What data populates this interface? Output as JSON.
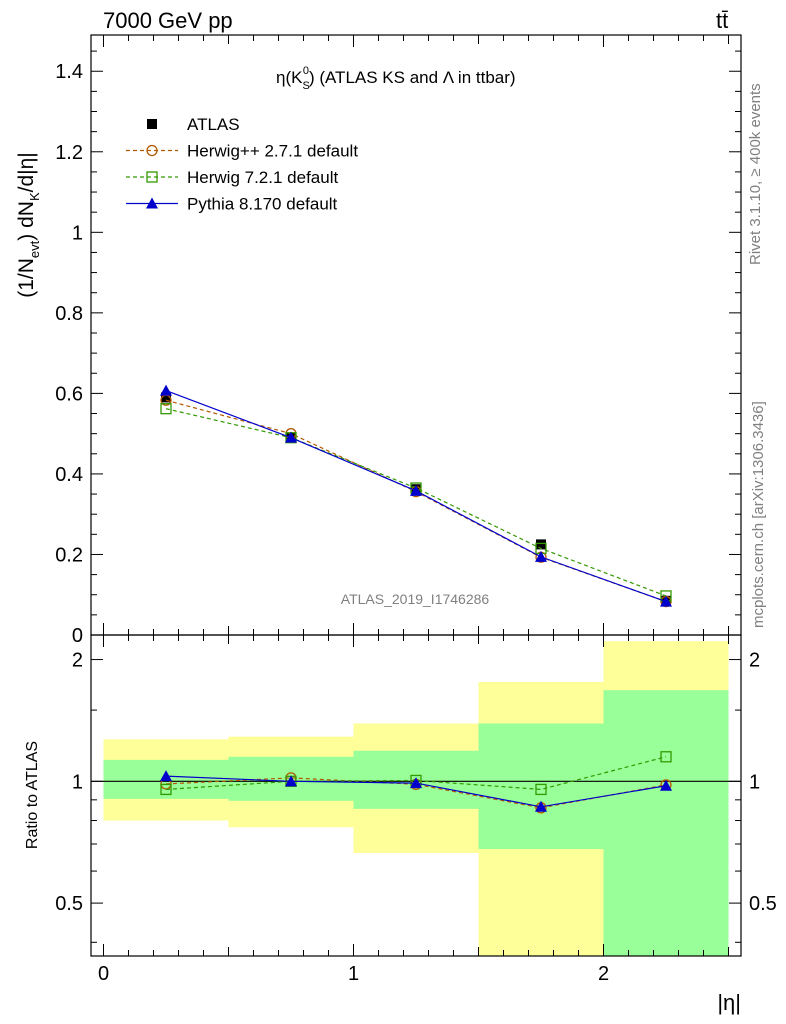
{
  "header": {
    "left": "7000 GeV pp",
    "right": "tt̄"
  },
  "side_labels": {
    "rivet": "Rivet 3.1.10, ≥ 400k events",
    "mcplots": "mcplots.cern.ch [arXiv:1306.3436]"
  },
  "chart_data": [
    {
      "type": "line",
      "title": "η(K_S^0) (ATLAS KS and Λ in ttbar)",
      "title_parts": {
        "pre": "η(K",
        "sub": "S",
        "sup": "0",
        "post": ") (ATLAS KS and Λ in ttbar)"
      },
      "ylabel": "(1/N_evt) dN_K/d|η|",
      "ylabel_parts": {
        "p1": "(1/N",
        "s1": "evt",
        "p2": ") dN",
        "s2": "K",
        "p3": "/d|η|"
      },
      "xlabel": "",
      "watermark": "ATLAS_2019_I1746286",
      "xlim": [
        -0.05,
        2.55
      ],
      "ylim": [
        0,
        1.49
      ],
      "y_ticks": [
        {
          "v": 0,
          "label": "0"
        },
        {
          "v": 0.2,
          "label": "0.2"
        },
        {
          "v": 0.4,
          "label": "0.4"
        },
        {
          "v": 0.6,
          "label": "0.6"
        },
        {
          "v": 0.8,
          "label": "0.8"
        },
        {
          "v": 1.0,
          "label": "1"
        },
        {
          "v": 1.2,
          "label": "1.2"
        },
        {
          "v": 1.4,
          "label": "1.4"
        }
      ],
      "x": [
        0.25,
        0.75,
        1.25,
        1.75,
        2.25
      ],
      "series": [
        {
          "name": "ATLAS",
          "style": "data",
          "color": "#000000",
          "values": [
            0.59,
            0.49,
            0.362,
            0.225,
            0.085
          ],
          "errors": [
            0.01,
            0.01,
            0.008,
            0.008,
            0.005
          ]
        },
        {
          "name": "Herwig++ 2.7.1 default",
          "style": "circle-dashed",
          "color": "#b35900",
          "values": [
            0.583,
            0.5,
            0.356,
            0.193,
            0.083
          ]
        },
        {
          "name": "Herwig 7.2.1 default",
          "style": "square-dashed",
          "color": "#339900",
          "values": [
            0.562,
            0.49,
            0.365,
            0.215,
            0.097
          ]
        },
        {
          "name": "Pythia 8.170 default",
          "style": "triangle-solid",
          "color": "#0000cc",
          "values": [
            0.607,
            0.49,
            0.358,
            0.194,
            0.083
          ]
        }
      ]
    },
    {
      "type": "line",
      "title": "",
      "ylabel": "Ratio to ATLAS",
      "xlabel": "|η|",
      "log_y": true,
      "xlim": [
        -0.05,
        2.55
      ],
      "ylim": [
        0.37,
        2.3
      ],
      "y_ticks": [
        {
          "v": 0.5,
          "label": "0.5"
        },
        {
          "v": 1,
          "label": "1"
        },
        {
          "v": 2,
          "label": "2"
        }
      ],
      "x_ticks": [
        {
          "v": 0,
          "label": "0"
        },
        {
          "v": 1,
          "label": "1"
        },
        {
          "v": 2,
          "label": "2"
        }
      ],
      "bands": [
        {
          "x": [
            0.0,
            0.5
          ],
          "inner": [
            0.905,
            1.13
          ],
          "outer": [
            0.8,
            1.27
          ]
        },
        {
          "x": [
            0.5,
            1.0
          ],
          "inner": [
            0.895,
            1.15
          ],
          "outer": [
            0.77,
            1.29
          ]
        },
        {
          "x": [
            1.0,
            1.5
          ],
          "inner": [
            0.855,
            1.19
          ],
          "outer": [
            0.665,
            1.39
          ]
        },
        {
          "x": [
            1.5,
            2.0
          ],
          "inner": [
            0.68,
            1.39
          ],
          "outer": [
            0.3,
            1.76
          ]
        },
        {
          "x": [
            2.0,
            2.5
          ],
          "inner": [
            0.3,
            1.68
          ],
          "outer": [
            0.3,
            2.22
          ]
        }
      ],
      "x": [
        0.25,
        0.75,
        1.25,
        1.75,
        2.25
      ],
      "series": [
        {
          "name": "Herwig++ 2.7.1 default",
          "style": "circle-dashed",
          "color": "#b35900",
          "values": [
            0.985,
            1.02,
            0.983,
            0.86,
            0.98
          ]
        },
        {
          "name": "Herwig 7.2.1 default",
          "style": "square-dashed",
          "color": "#339900",
          "values": [
            0.955,
            1.0,
            1.005,
            0.955,
            1.15
          ]
        },
        {
          "name": "Pythia 8.170 default",
          "style": "triangle-solid",
          "color": "#0000cc",
          "values": [
            1.03,
            1.0,
            0.99,
            0.865,
            0.975
          ]
        }
      ]
    }
  ],
  "colors": {
    "band_inner": "#99ff99",
    "band_outer": "#ffff99"
  }
}
